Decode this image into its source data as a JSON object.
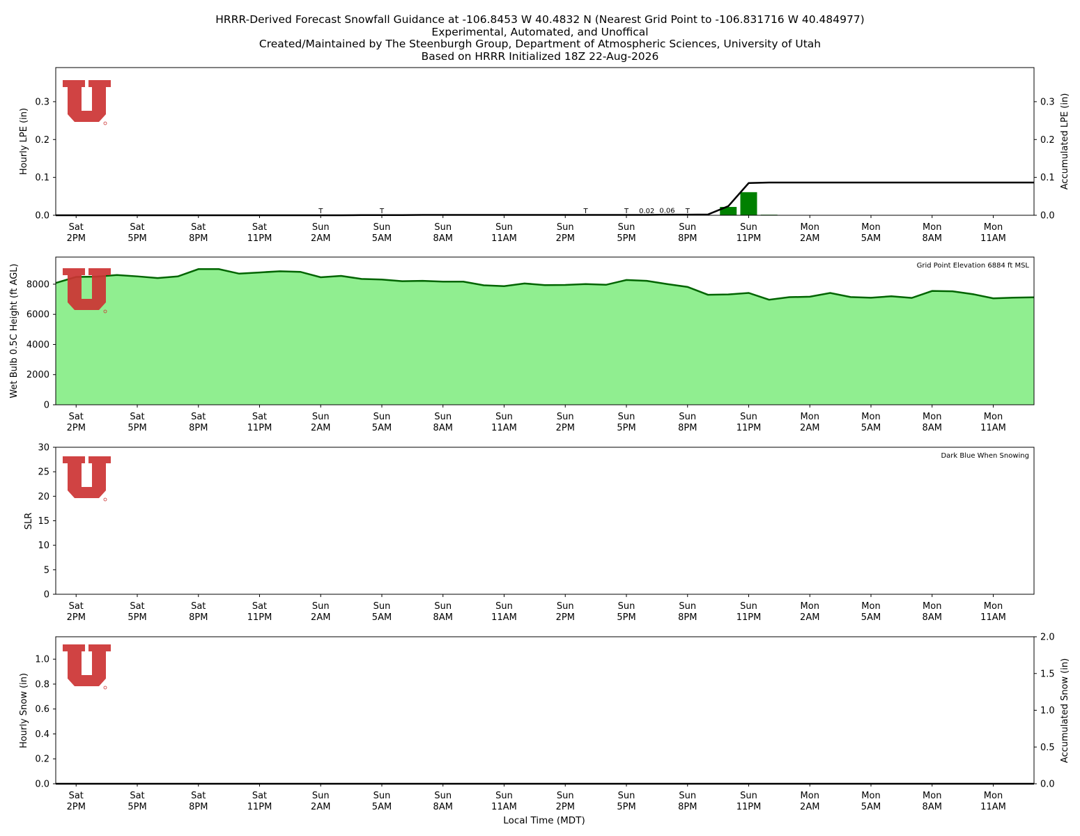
{
  "title_lines": [
    "HRRR-Derived Forecast Snowfall Guidance at -106.8453 W 40.4832 N (Nearest Grid Point to -106.831716 W 40.484977)",
    "Experimental, Automated, and Unoffical",
    "Created/Maintained by The Steenburgh Group, Department of Atmospheric Sciences, University of Utah",
    "Based on HRRR Initialized 18Z 22-Aug-2026"
  ],
  "xlabel": "Local Time (MDT)",
  "colors": {
    "logo_red": "#cc3333",
    "bar_green": "#008000",
    "area_fill": "#90ee90",
    "area_line": "#006400",
    "accum_line": "#000000"
  },
  "chart_data": [
    {
      "type": "bar",
      "title": "",
      "ylabel": "Hourly LPE (in)",
      "y2label": "Accumulated LPE (in)",
      "ylim": [
        0,
        0.39
      ],
      "y2lim": [
        0,
        0.39
      ],
      "yticks": [
        "0.0",
        "0.1",
        "0.2",
        "0.3"
      ],
      "y2ticks": [
        "0.0",
        "0.1",
        "0.2",
        "0.3"
      ],
      "x_hours": [
        -1,
        0,
        1,
        2,
        3,
        4,
        5,
        6,
        7,
        8,
        9,
        10,
        11,
        12,
        13,
        14,
        15,
        16,
        17,
        18,
        19,
        20,
        21,
        22,
        23,
        24,
        25,
        26,
        27,
        28,
        29,
        30,
        31,
        32,
        33,
        34,
        35,
        36,
        37,
        38,
        39,
        40,
        41,
        42,
        43,
        44,
        45,
        46,
        47
      ],
      "hourly_lpe": [
        0,
        0,
        0,
        0,
        0,
        0,
        0,
        0,
        0,
        0,
        0,
        0,
        0,
        0,
        0,
        0.0005,
        0,
        0,
        0.0005,
        0,
        0,
        0,
        0,
        0,
        0,
        0,
        0,
        0,
        0,
        0,
        0.0005,
        0,
        0.0005,
        0.022,
        0.061,
        0.0015,
        0,
        0,
        0,
        0,
        0,
        0,
        0,
        0,
        0,
        0,
        0,
        0,
        0
      ],
      "accumulated_lpe": [
        0,
        0,
        0,
        0,
        0,
        0,
        0,
        0,
        0,
        0,
        0,
        0,
        0,
        0,
        0,
        0.0005,
        0.0005,
        0.0005,
        0.001,
        0.001,
        0.001,
        0.001,
        0.001,
        0.001,
        0.001,
        0.001,
        0.001,
        0.001,
        0.001,
        0.001,
        0.0015,
        0.0015,
        0.002,
        0.024,
        0.085,
        0.0865,
        0.0865,
        0.0865,
        0.0865,
        0.0865,
        0.0865,
        0.0865,
        0.0865,
        0.0865,
        0.0865,
        0.0865,
        0.0865,
        0.0865,
        0.0865
      ],
      "annotations": [
        {
          "hour": 12,
          "label": "T"
        },
        {
          "hour": 15,
          "label": "T"
        },
        {
          "hour": 25,
          "label": "T"
        },
        {
          "hour": 27,
          "label": "T"
        },
        {
          "hour": 28,
          "label": "0.02"
        },
        {
          "hour": 29,
          "label": "0.06"
        },
        {
          "hour": 30,
          "label": "T"
        }
      ]
    },
    {
      "type": "area",
      "title": "",
      "ylabel": "Wet Bulb 0.5C Height (ft AGL)",
      "ylim": [
        0,
        9800
      ],
      "yticks": [
        "0",
        "2000",
        "4000",
        "6000",
        "8000"
      ],
      "note": "Grid Point Elevation 6884 ft MSL",
      "x_hours": [
        -1,
        0,
        1,
        2,
        3,
        4,
        5,
        6,
        7,
        8,
        9,
        10,
        11,
        12,
        13,
        14,
        15,
        16,
        17,
        18,
        19,
        20,
        21,
        22,
        23,
        24,
        25,
        26,
        27,
        28,
        29,
        30,
        31,
        32,
        33,
        34,
        35,
        36,
        37,
        38,
        39,
        40,
        41,
        42,
        43,
        44,
        45,
        46,
        47
      ],
      "values": [
        8080,
        8480,
        8500,
        8610,
        8520,
        8410,
        8520,
        9000,
        9000,
        8700,
        8780,
        8860,
        8820,
        8460,
        8550,
        8350,
        8310,
        8200,
        8220,
        8170,
        8170,
        7930,
        7870,
        8050,
        7940,
        7950,
        8010,
        7960,
        8280,
        8220,
        8010,
        7820,
        7300,
        7320,
        7420,
        6970,
        7140,
        7170,
        7420,
        7150,
        7100,
        7200,
        7090,
        7550,
        7530,
        7340,
        7060,
        7110,
        7130
      ]
    },
    {
      "type": "line",
      "title": "",
      "ylabel": "SLR",
      "ylim": [
        0,
        30
      ],
      "yticks": [
        "0",
        "5",
        "10",
        "15",
        "20",
        "25",
        "30"
      ],
      "note": "Dark Blue When Snowing",
      "values": []
    },
    {
      "type": "bar",
      "title": "",
      "ylabel": "Hourly Snow (in)",
      "y2label": "Accumulated Snow (in)",
      "ylim": [
        0,
        1.18
      ],
      "y2lim": [
        0,
        2.0
      ],
      "yticks": [
        "0.0",
        "0.2",
        "0.4",
        "0.6",
        "0.8",
        "1.0"
      ],
      "y2ticks": [
        "0.0",
        "0.5",
        "1.0",
        "1.5",
        "2.0"
      ],
      "x_hours": [
        -1,
        47
      ],
      "hourly_snow": [
        0,
        0
      ],
      "accumulated_snow": [
        0,
        0
      ]
    }
  ],
  "x_axis": {
    "range_hours": [
      -1,
      47
    ],
    "ticks": [
      {
        "hour": 0,
        "day": "Sat",
        "time": "2PM"
      },
      {
        "hour": 3,
        "day": "Sat",
        "time": "5PM"
      },
      {
        "hour": 6,
        "day": "Sat",
        "time": "8PM"
      },
      {
        "hour": 9,
        "day": "Sat",
        "time": "11PM"
      },
      {
        "hour": 12,
        "day": "Sun",
        "time": "2AM"
      },
      {
        "hour": 15,
        "day": "Sun",
        "time": "5AM"
      },
      {
        "hour": 18,
        "day": "Sun",
        "time": "8AM"
      },
      {
        "hour": 21,
        "day": "Sun",
        "time": "11AM"
      },
      {
        "hour": 24,
        "day": "Sun",
        "time": "2PM"
      },
      {
        "hour": 27,
        "day": "Sun",
        "time": "5PM"
      },
      {
        "hour": 30,
        "day": "Sun",
        "time": "8PM"
      },
      {
        "hour": 33,
        "day": "Sun",
        "time": "11PM"
      },
      {
        "hour": 36,
        "day": "Mon",
        "time": "2AM"
      },
      {
        "hour": 39,
        "day": "Mon",
        "time": "5AM"
      },
      {
        "hour": 42,
        "day": "Mon",
        "time": "8AM"
      },
      {
        "hour": 45,
        "day": "Mon",
        "time": "11AM"
      }
    ]
  }
}
